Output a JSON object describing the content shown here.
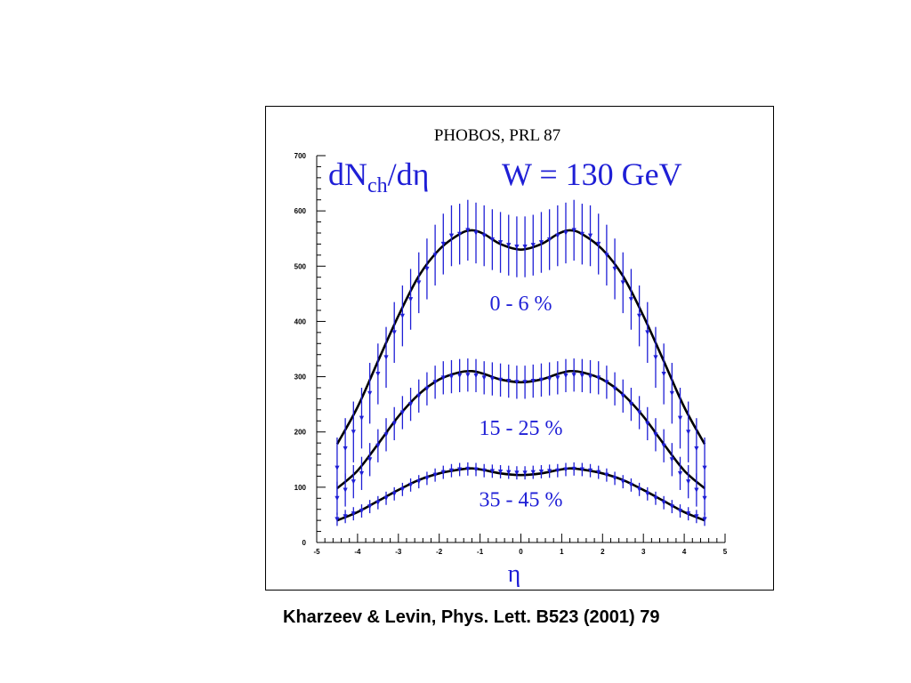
{
  "figure": {
    "source_label": "PHOBOS, PRL 87",
    "citation": "Kharzeev & Levin, Phys. Lett. B523 (2001) 79"
  },
  "chart_data": {
    "type": "scatter",
    "title": "dNch/dη   W = 130 GeV",
    "title_parts": {
      "quantity_main": "dN",
      "quantity_sub": "ch",
      "quantity_tail": "/dη",
      "energy": "W = 130 GeV"
    },
    "xlabel": "η",
    "ylabel": "",
    "xlim": [
      -5,
      5
    ],
    "ylim": [
      0,
      700
    ],
    "x_ticks": [
      -5,
      -4,
      -3,
      -2,
      -1,
      0,
      1,
      2,
      3,
      4,
      5
    ],
    "y_ticks": [
      0,
      100,
      200,
      300,
      400,
      500,
      600,
      700
    ],
    "grid": false,
    "colors": {
      "data": "#1f1fd6",
      "curve": "#000000"
    },
    "series": [
      {
        "label": "0 - 6 %",
        "x": [
          -4.5,
          -4.3,
          -4.1,
          -3.9,
          -3.7,
          -3.5,
          -3.3,
          -3.1,
          -2.9,
          -2.7,
          -2.5,
          -2.3,
          -2.1,
          -1.9,
          -1.7,
          -1.5,
          -1.3,
          -1.1,
          -0.9,
          -0.7,
          -0.5,
          -0.3,
          -0.1,
          0.1,
          0.3,
          0.5,
          0.7,
          0.9,
          1.1,
          1.3,
          1.5,
          1.7,
          1.9,
          2.1,
          2.3,
          2.5,
          2.7,
          2.9,
          3.1,
          3.3,
          3.5,
          3.7,
          3.9,
          4.1,
          4.3,
          4.5
        ],
        "y": [
          135,
          170,
          200,
          225,
          270,
          305,
          335,
          380,
          410,
          440,
          470,
          495,
          520,
          540,
          555,
          558,
          565,
          560,
          555,
          548,
          543,
          538,
          535,
          535,
          538,
          543,
          548,
          555,
          560,
          565,
          558,
          555,
          540,
          520,
          495,
          470,
          440,
          410,
          380,
          335,
          305,
          270,
          225,
          200,
          170,
          135
        ],
        "err": 55,
        "curve": [
          [
            -4.5,
            178
          ],
          [
            -4.0,
            245
          ],
          [
            -3.5,
            328
          ],
          [
            -3.0,
            410
          ],
          [
            -2.5,
            482
          ],
          [
            -2.0,
            530
          ],
          [
            -1.5,
            558
          ],
          [
            -1.2,
            565
          ],
          [
            -0.9,
            558
          ],
          [
            -0.5,
            540
          ],
          [
            0.0,
            530
          ],
          [
            0.5,
            540
          ],
          [
            0.9,
            558
          ],
          [
            1.2,
            565
          ],
          [
            1.5,
            558
          ],
          [
            2.0,
            530
          ],
          [
            2.5,
            482
          ],
          [
            3.0,
            410
          ],
          [
            3.5,
            328
          ],
          [
            4.0,
            245
          ],
          [
            4.5,
            178
          ]
        ]
      },
      {
        "label": "15 - 25 %",
        "x": [
          -4.5,
          -4.3,
          -4.1,
          -3.9,
          -3.7,
          -3.5,
          -3.3,
          -3.1,
          -2.9,
          -2.7,
          -2.5,
          -2.3,
          -2.1,
          -1.9,
          -1.7,
          -1.5,
          -1.3,
          -1.1,
          -0.9,
          -0.7,
          -0.5,
          -0.3,
          -0.1,
          0.1,
          0.3,
          0.5,
          0.7,
          0.9,
          1.1,
          1.3,
          1.5,
          1.7,
          1.9,
          2.1,
          2.3,
          2.5,
          2.7,
          2.9,
          3.1,
          3.3,
          3.5,
          3.7,
          3.9,
          4.1,
          4.3,
          4.5
        ],
        "y": [
          80,
          95,
          110,
          125,
          150,
          175,
          195,
          215,
          235,
          250,
          265,
          278,
          290,
          298,
          300,
          302,
          303,
          302,
          298,
          296,
          294,
          292,
          290,
          290,
          292,
          294,
          296,
          298,
          302,
          303,
          302,
          300,
          298,
          290,
          278,
          265,
          250,
          235,
          215,
          195,
          175,
          150,
          125,
          110,
          95,
          80
        ],
        "err": 30,
        "curve": [
          [
            -4.5,
            98
          ],
          [
            -4.0,
            130
          ],
          [
            -3.5,
            178
          ],
          [
            -3.0,
            228
          ],
          [
            -2.5,
            268
          ],
          [
            -2.0,
            295
          ],
          [
            -1.5,
            308
          ],
          [
            -1.2,
            310
          ],
          [
            -0.9,
            305
          ],
          [
            -0.5,
            295
          ],
          [
            0.0,
            290
          ],
          [
            0.5,
            295
          ],
          [
            0.9,
            305
          ],
          [
            1.2,
            310
          ],
          [
            1.5,
            308
          ],
          [
            2.0,
            295
          ],
          [
            2.5,
            268
          ],
          [
            3.0,
            228
          ],
          [
            3.5,
            178
          ],
          [
            4.0,
            130
          ],
          [
            4.5,
            98
          ]
        ]
      },
      {
        "label": "35 - 45 %",
        "x": [
          -4.5,
          -4.3,
          -4.1,
          -3.9,
          -3.7,
          -3.5,
          -3.3,
          -3.1,
          -2.9,
          -2.7,
          -2.5,
          -2.3,
          -2.1,
          -1.9,
          -1.7,
          -1.5,
          -1.3,
          -1.1,
          -0.9,
          -0.7,
          -0.5,
          -0.3,
          -0.1,
          0.1,
          0.3,
          0.5,
          0.7,
          0.9,
          1.1,
          1.3,
          1.5,
          1.7,
          1.9,
          2.1,
          2.3,
          2.5,
          2.7,
          2.9,
          3.1,
          3.3,
          3.5,
          3.7,
          3.9,
          4.1,
          4.3,
          4.5
        ],
        "y": [
          42,
          47,
          52,
          57,
          65,
          72,
          80,
          88,
          96,
          104,
          110,
          116,
          122,
          127,
          130,
          132,
          133,
          132,
          130,
          129,
          128,
          127,
          126,
          126,
          127,
          128,
          129,
          130,
          132,
          133,
          132,
          130,
          127,
          122,
          116,
          110,
          104,
          96,
          88,
          80,
          72,
          65,
          57,
          52,
          47,
          42
        ],
        "err": 12,
        "curve": [
          [
            -4.5,
            40
          ],
          [
            -4.0,
            55
          ],
          [
            -3.5,
            75
          ],
          [
            -3.0,
            95
          ],
          [
            -2.5,
            113
          ],
          [
            -2.0,
            125
          ],
          [
            -1.5,
            132
          ],
          [
            -1.2,
            134
          ],
          [
            -0.9,
            131
          ],
          [
            -0.5,
            125
          ],
          [
            0.0,
            122
          ],
          [
            0.5,
            125
          ],
          [
            0.9,
            131
          ],
          [
            1.2,
            134
          ],
          [
            1.5,
            132
          ],
          [
            2.0,
            125
          ],
          [
            2.5,
            113
          ],
          [
            3.0,
            95
          ],
          [
            3.5,
            75
          ],
          [
            4.0,
            55
          ],
          [
            4.5,
            40
          ]
        ]
      }
    ]
  }
}
